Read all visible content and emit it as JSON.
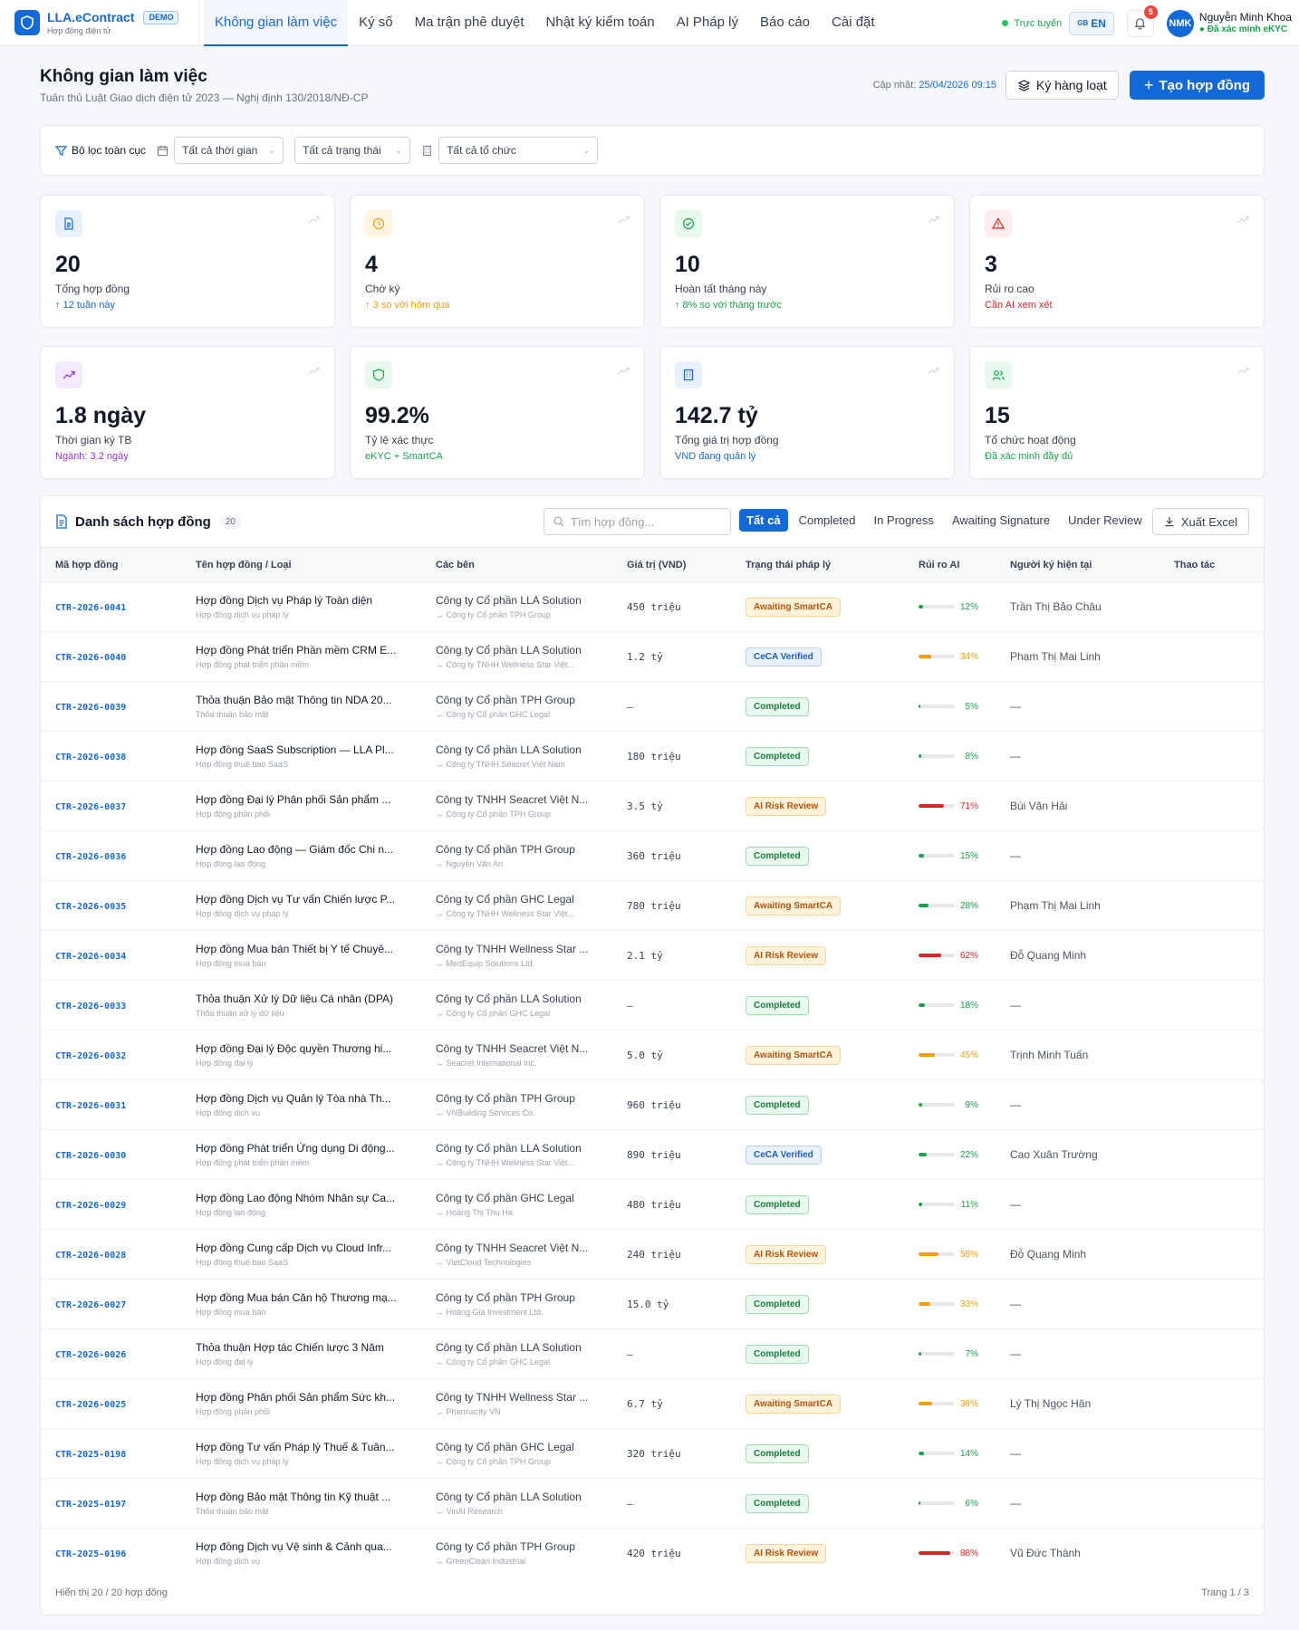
{
  "brand": {
    "name": "LLA.eContract",
    "demo": "DEMO",
    "subtitle": "Hợp đồng điện tử"
  },
  "nav": [
    {
      "label": "Không gian làm việc",
      "active": true
    },
    {
      "label": "Ký số"
    },
    {
      "label": "Ma trận phê duyệt"
    },
    {
      "label": "Nhật ký kiểm toán"
    },
    {
      "label": "AI Pháp lý"
    },
    {
      "label": "Báo cáo"
    },
    {
      "label": "Cài đặt"
    }
  ],
  "topbar": {
    "status": "Trực tuyến",
    "lang_flag": "GB",
    "lang": "EN",
    "notifications": "5",
    "avatar_initials": "NMK",
    "user_name": "Nguyễn Minh Khoa",
    "user_verified": "Đã xác minh eKYC"
  },
  "page": {
    "title": "Không gian làm việc",
    "subtitle": "Tuân thủ Luật Giao dịch điện tử 2023 — Nghị định 130/2018/NĐ-CP",
    "updated_label": "Cập nhật:",
    "updated_value": "25/04/2026 09:15",
    "batch_sign": "Ký hàng loạt",
    "create": "Tạo hợp đồng"
  },
  "filters": {
    "label": "Bộ lọc toàn cục",
    "time": "Tất cả thời gian",
    "status": "Tất cả trạng thái",
    "org": "Tất cả tổ chức"
  },
  "stats": [
    {
      "icon": "document-icon",
      "value": "20",
      "label": "Tổng hợp đồng",
      "note": "↑ 12 tuần này",
      "icon_bg": "#e8f1fd",
      "icon_color": "#1469d8",
      "note_color": "#1469d8"
    },
    {
      "icon": "clock-icon",
      "value": "4",
      "label": "Chờ ký",
      "note": "↑ 3 so với hôm qua",
      "icon_bg": "#fff5e0",
      "icon_color": "#f59e0b",
      "note_color": "#f59e0b"
    },
    {
      "icon": "check-circle-icon",
      "value": "10",
      "label": "Hoàn tất tháng này",
      "note": "↑ 8% so với tháng trước",
      "icon_bg": "#e7f8ed",
      "icon_color": "#16a34a",
      "note_color": "#16a34a"
    },
    {
      "icon": "warning-icon",
      "value": "3",
      "label": "Rủi ro cao",
      "note": "Cần AI xem xét",
      "icon_bg": "#fdecec",
      "icon_color": "#dc2626",
      "note_color": "#dc2626"
    },
    {
      "icon": "trending-up-icon",
      "value": "1.8 ngày",
      "label": "Thời gian ký TB",
      "note": "Ngành: 3.2 ngày",
      "icon_bg": "#f3ebfd",
      "icon_color": "#9333ea",
      "note_color": "#9333ea"
    },
    {
      "icon": "shield-icon",
      "value": "99.2%",
      "label": "Tỷ lệ xác thực",
      "note": "eKYC + SmartCA",
      "icon_bg": "#e7f8ed",
      "icon_color": "#16a34a",
      "note_color": "#16a34a"
    },
    {
      "icon": "building-icon",
      "value": "142.7 tỷ",
      "label": "Tổng giá trị hợp đồng",
      "note": "VND đang quản lý",
      "icon_bg": "#e8f1fd",
      "icon_color": "#1469d8",
      "note_color": "#1469d8"
    },
    {
      "icon": "users-icon",
      "value": "15",
      "label": "Tổ chức hoạt động",
      "note": "Đã xác minh đầy đủ",
      "icon_bg": "#e7f8ed",
      "icon_color": "#16a34a",
      "note_color": "#16a34a"
    }
  ],
  "table": {
    "title": "Danh sách hợp đồng",
    "count": "20",
    "search_placeholder": "Tìm hợp đồng...",
    "tabs": [
      "Tất cả",
      "Completed",
      "In Progress",
      "Awaiting Signature",
      "Under Review"
    ],
    "export": "Xuất Excel",
    "columns": [
      "Mã hợp đồng",
      "Tên hợp đồng / Loại",
      "Các bên",
      "Giá trị (VND)",
      "Trạng thái pháp lý",
      "Rủi ro AI",
      "Người ký hiện tại",
      "Thao tác"
    ],
    "rows": [
      {
        "id": "CTR-2026-0041",
        "name": "Hợp đồng Dịch vụ Pháp lý Toàn diện",
        "type": "Hợp đồng dịch vụ pháp lý",
        "party": "Công ty Cổ phần LLA Solution",
        "counterparty": "↔ Công ty Cổ phần TPH Group",
        "value": "450 triệu",
        "status": "Awaiting SmartCA",
        "risk": 12,
        "signer": "Trần Thị Bảo Châu"
      },
      {
        "id": "CTR-2026-0040",
        "name": "Hợp đồng Phát triển Phần mềm CRM E...",
        "type": "Hợp đồng phát triển phần mềm",
        "party": "Công ty Cổ phần LLA Solution",
        "counterparty": "↔ Công ty TNHH Wellness Star Việt...",
        "value": "1.2 tỷ",
        "status": "CeCA Verified",
        "risk": 34,
        "signer": "Phạm Thị Mai Linh"
      },
      {
        "id": "CTR-2026-0039",
        "name": "Thỏa thuận Bảo mật Thông tin NDA 20...",
        "type": "Thỏa thuận bảo mật",
        "party": "Công ty Cổ phần TPH Group",
        "counterparty": "↔ Công ty Cổ phần GHC Legal",
        "value": "—",
        "status": "Completed",
        "risk": 5,
        "signer": "—"
      },
      {
        "id": "CTR-2026-0038",
        "name": "Hợp đồng SaaS Subscription — LLA Pl...",
        "type": "Hợp đồng thuê bao SaaS",
        "party": "Công ty Cổ phần LLA Solution",
        "counterparty": "↔ Công ty TNHH Seacret Việt Nam",
        "value": "180 triệu",
        "status": "Completed",
        "risk": 8,
        "signer": "—"
      },
      {
        "id": "CTR-2026-0037",
        "name": "Hợp đồng Đại lý Phân phối Sản phẩm ...",
        "type": "Hợp đồng phân phối",
        "party": "Công ty TNHH Seacret Việt N...",
        "counterparty": "↔ Công ty Cổ phần TPH Group",
        "value": "3.5 tỷ",
        "status": "AI Risk Review",
        "risk": 71,
        "signer": "Bùi Văn Hải"
      },
      {
        "id": "CTR-2026-0036",
        "name": "Hợp đồng Lao động — Giám đốc Chi n...",
        "type": "Hợp đồng lao động",
        "party": "Công ty Cổ phần TPH Group",
        "counterparty": "↔ Nguyễn Văn An",
        "value": "360 triệu",
        "status": "Completed",
        "risk": 15,
        "signer": "—"
      },
      {
        "id": "CTR-2026-0035",
        "name": "Hợp đồng Dịch vụ Tư vấn Chiến lược P...",
        "type": "Hợp đồng dịch vụ pháp lý",
        "party": "Công ty Cổ phần GHC Legal",
        "counterparty": "↔ Công ty TNHH Wellness Star Việt...",
        "value": "780 triệu",
        "status": "Awaiting SmartCA",
        "risk": 28,
        "signer": "Phạm Thị Mai Linh"
      },
      {
        "id": "CTR-2026-0034",
        "name": "Hợp đồng Mua bán Thiết bị Y tế Chuyê...",
        "type": "Hợp đồng mua bán",
        "party": "Công ty TNHH Wellness Star ...",
        "counterparty": "↔ MedEquip Solutions Ltd.",
        "value": "2.1 tỷ",
        "status": "AI Risk Review",
        "risk": 62,
        "signer": "Đỗ Quang Minh"
      },
      {
        "id": "CTR-2026-0033",
        "name": "Thỏa thuận Xử lý Dữ liệu Cá nhân (DPA)",
        "type": "Thỏa thuận xử lý dữ liệu",
        "party": "Công ty Cổ phần LLA Solution",
        "counterparty": "↔ Công ty Cổ phần GHC Legal",
        "value": "—",
        "status": "Completed",
        "risk": 18,
        "signer": "—"
      },
      {
        "id": "CTR-2026-0032",
        "name": "Hợp đồng Đại lý Độc quyền Thương hi...",
        "type": "Hợp đồng đại lý",
        "party": "Công ty TNHH Seacret Việt N...",
        "counterparty": "↔ Seacret International Inc.",
        "value": "5.0 tỷ",
        "status": "Awaiting SmartCA",
        "risk": 45,
        "signer": "Trịnh Minh Tuấn"
      },
      {
        "id": "CTR-2026-0031",
        "name": "Hợp đồng Dịch vụ Quản lý Tòa nhà Th...",
        "type": "Hợp đồng dịch vụ",
        "party": "Công ty Cổ phần TPH Group",
        "counterparty": "↔ VNBuilding Services Co.",
        "value": "960 triệu",
        "status": "Completed",
        "risk": 9,
        "signer": "—"
      },
      {
        "id": "CTR-2026-0030",
        "name": "Hợp đồng Phát triển Ứng dụng Di động...",
        "type": "Hợp đồng phát triển phần mềm",
        "party": "Công ty Cổ phần LLA Solution",
        "counterparty": "↔ Công ty TNHH Wellness Star Việt...",
        "value": "890 triệu",
        "status": "CeCA Verified",
        "risk": 22,
        "signer": "Cao Xuân Trường"
      },
      {
        "id": "CTR-2026-0029",
        "name": "Hợp đồng Lao động Nhóm Nhân sự Ca...",
        "type": "Hợp đồng lao động",
        "party": "Công ty Cổ phần GHC Legal",
        "counterparty": "↔ Hoàng Thị Thu Hà",
        "value": "480 triệu",
        "status": "Completed",
        "risk": 11,
        "signer": "—"
      },
      {
        "id": "CTR-2026-0028",
        "name": "Hợp đồng Cung cấp Dịch vụ Cloud Infr...",
        "type": "Hợp đồng thuê bao SaaS",
        "party": "Công ty TNHH Seacret Việt N...",
        "counterparty": "↔ VietCloud Technologies",
        "value": "240 triệu",
        "status": "AI Risk Review",
        "risk": 55,
        "signer": "Đỗ Quang Minh"
      },
      {
        "id": "CTR-2026-0027",
        "name": "Hợp đồng Mua bán Căn hộ Thương mạ...",
        "type": "Hợp đồng mua bán",
        "party": "Công ty Cổ phần TPH Group",
        "counterparty": "↔ Hoàng Gia Investment Ltd.",
        "value": "15.0 tỷ",
        "status": "Completed",
        "risk": 33,
        "signer": "—"
      },
      {
        "id": "CTR-2026-0026",
        "name": "Thỏa thuận Hợp tác Chiến lược 3 Năm",
        "type": "Hợp đồng đại lý",
        "party": "Công ty Cổ phần LLA Solution",
        "counterparty": "↔ Công ty Cổ phần GHC Legal",
        "value": "—",
        "status": "Completed",
        "risk": 7,
        "signer": "—"
      },
      {
        "id": "CTR-2026-0025",
        "name": "Hợp đồng Phân phối Sản phẩm Sức kh...",
        "type": "Hợp đồng phân phối",
        "party": "Công ty TNHH Wellness Star ...",
        "counterparty": "↔ Pharmacity VN",
        "value": "6.7 tỷ",
        "status": "Awaiting SmartCA",
        "risk": 38,
        "signer": "Lý Thị Ngọc Hân"
      },
      {
        "id": "CTR-2025-0198",
        "name": "Hợp đồng Tư vấn Pháp lý Thuế & Tuân...",
        "type": "Hợp đồng dịch vụ pháp lý",
        "party": "Công ty Cổ phần GHC Legal",
        "counterparty": "↔ Công ty Cổ phần TPH Group",
        "value": "320 triệu",
        "status": "Completed",
        "risk": 14,
        "signer": "—"
      },
      {
        "id": "CTR-2025-0197",
        "name": "Hợp đồng Bảo mật Thông tin Kỹ thuật ...",
        "type": "Thỏa thuận bảo mật",
        "party": "Công ty Cổ phần LLA Solution",
        "counterparty": "↔ VinAI Research",
        "value": "—",
        "status": "Completed",
        "risk": 6,
        "signer": "—"
      },
      {
        "id": "CTR-2025-0196",
        "name": "Hợp đồng Dịch vụ Vệ sinh & Cảnh qua...",
        "type": "Hợp đồng dịch vụ",
        "party": "Công ty Cổ phần TPH Group",
        "counterparty": "↔ GreenClean Industrial",
        "value": "420 triệu",
        "status": "AI Risk Review",
        "risk": 88,
        "signer": "Vũ Đức Thành"
      }
    ],
    "footer_left": "Hiển thị 20 / 20 hợp đồng",
    "footer_right": "Trang 1 / 3"
  }
}
